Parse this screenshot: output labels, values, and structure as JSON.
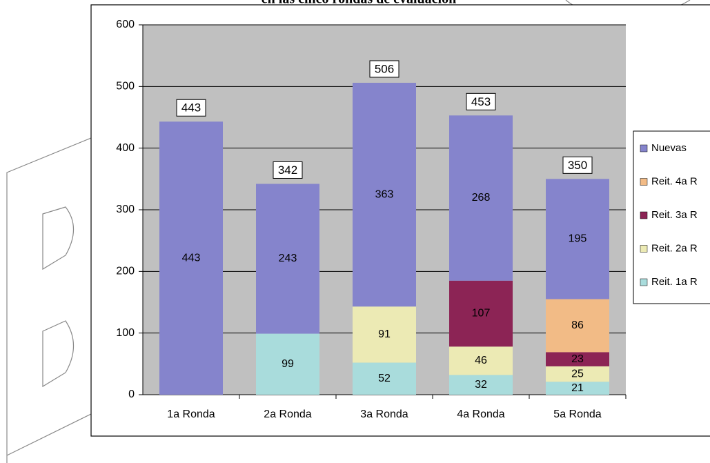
{
  "chart_data": {
    "type": "stacked_bar",
    "title": "en las cinco rondas de evaluación",
    "categories": [
      "1a Ronda",
      "2a Ronda",
      "3a Ronda",
      "4a Ronda",
      "5a Ronda"
    ],
    "series": [
      {
        "name": "Reit. 1a R",
        "color": "#a9dcdc",
        "values": [
          null,
          99,
          52,
          32,
          21
        ]
      },
      {
        "name": "Reit. 2a R",
        "color": "#eceab4",
        "values": [
          null,
          null,
          91,
          46,
          25
        ]
      },
      {
        "name": "Reit. 3a R",
        "color": "#8c2455",
        "values": [
          null,
          null,
          null,
          107,
          23
        ]
      },
      {
        "name": "Reit. 4a R",
        "color": "#f2bb86",
        "values": [
          null,
          null,
          null,
          null,
          86
        ]
      },
      {
        "name": "Nuevas",
        "color": "#8584cc",
        "values": [
          443,
          243,
          363,
          268,
          195
        ]
      }
    ],
    "totals": [
      443,
      342,
      506,
      453,
      350
    ],
    "ylim": [
      0,
      600
    ],
    "yticks": [
      0,
      100,
      200,
      300,
      400,
      500,
      600
    ],
    "grid": true,
    "legend": "right"
  }
}
